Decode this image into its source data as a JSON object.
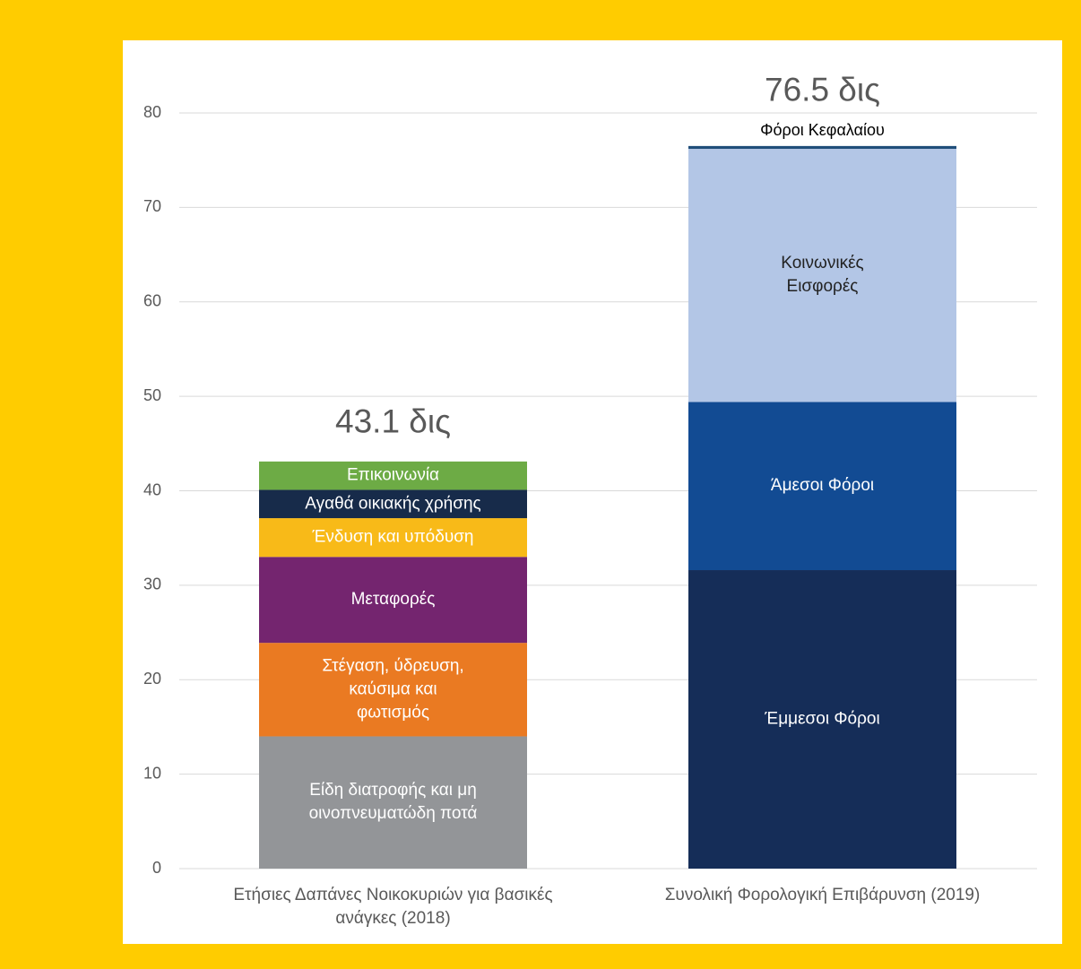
{
  "chart_data": {
    "type": "stacked-bar",
    "ylim": [
      0,
      80
    ],
    "yticks": [
      0,
      10,
      20,
      30,
      40,
      50,
      60,
      70,
      80
    ],
    "grid": true,
    "bars": [
      {
        "category": [
          "Ετήσιες Δαπάνες Νοικοκυριών για βασικές",
          "ανάγκες (2018)"
        ],
        "total": 43.1,
        "total_label": "43.1 δις",
        "segments": [
          {
            "name": [
              "Είδη διατροφής και μη",
              "οινοπνευματώδη ποτά"
            ],
            "value": 14.0,
            "color": "#939598",
            "text_color": "#ffffff"
          },
          {
            "name": [
              "Στέγαση, ύδρευση,",
              "καύσιμα και",
              "φωτισμός"
            ],
            "value": 9.9,
            "color": "#EA7A22",
            "text_color": "#ffffff"
          },
          {
            "name": [
              "Μεταφορές"
            ],
            "value": 9.1,
            "color": "#74256F",
            "text_color": "#ffffff"
          },
          {
            "name": [
              "Ένδυση και υπόδυση"
            ],
            "value": 4.1,
            "color": "#F8BA18",
            "text_color": "#ffffff"
          },
          {
            "name": [
              "Αγαθά οικιακής χρήσης"
            ],
            "value": 3.0,
            "color": "#172B4A",
            "text_color": "#ffffff"
          },
          {
            "name": [
              "Επικοινωνία"
            ],
            "value": 3.0,
            "color": "#6DAB45",
            "text_color": "#ffffff"
          }
        ]
      },
      {
        "category": [
          "Συνολική Φορολογική Επιβάρυνση (2019)"
        ],
        "total": 76.5,
        "total_label": "76.5 δις",
        "segments": [
          {
            "name": [
              "Έμμεσοι Φόροι"
            ],
            "value": 31.6,
            "color": "#152D58",
            "text_color": "#ffffff"
          },
          {
            "name": [
              "Άμεσοι Φόροι"
            ],
            "value": 17.8,
            "color": "#124B93",
            "text_color": "#ffffff"
          },
          {
            "name": [
              "Κοινωνικές",
              "Εισφορές"
            ],
            "value": 26.8,
            "color": "#B3C6E6",
            "text_color": "#222222"
          },
          {
            "name": [
              "Φόροι Κεφαλαίου"
            ],
            "value": 0.3,
            "color": "#1F4E79",
            "text_color": "#000000"
          }
        ]
      }
    ]
  }
}
